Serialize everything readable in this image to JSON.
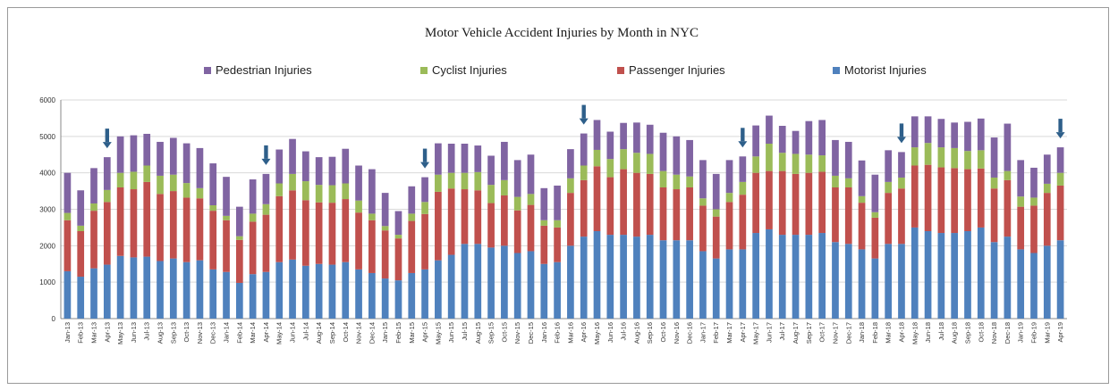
{
  "chart_data": {
    "type": "bar",
    "stacked": true,
    "title": "Motor Vehicle Accident Injuries by Month in NYC",
    "xlabel": "",
    "ylabel": "",
    "ylim": [
      0,
      6000
    ],
    "yticks": [
      0,
      1000,
      2000,
      3000,
      4000,
      5000,
      6000
    ],
    "grid": true,
    "legend_position": "top",
    "categories": [
      "Jan-13",
      "Feb-13",
      "Mar-13",
      "Apr-13",
      "May-13",
      "Jun-13",
      "Jul-13",
      "Aug-13",
      "Sep-13",
      "Oct-13",
      "Nov-13",
      "Dec-13",
      "Jan-14",
      "Feb-14",
      "Mar-14",
      "Apr-14",
      "May-14",
      "Jun-14",
      "Jul-14",
      "Aug-14",
      "Sep-14",
      "Oct-14",
      "Nov-14",
      "Dec-14",
      "Jan-15",
      "Feb-15",
      "Mar-15",
      "Apr-15",
      "May-15",
      "Jun-15",
      "Jul-15",
      "Aug-15",
      "Sep-15",
      "Oct-15",
      "Nov-15",
      "Dec-15",
      "Jan-16",
      "Feb-16",
      "Mar-16",
      "Apr-16",
      "May-16",
      "Jun-16",
      "Jul-16",
      "Aug-16",
      "Sep-16",
      "Oct-16",
      "Nov-16",
      "Dec-16",
      "Jan-17",
      "Feb-17",
      "Mar-17",
      "Apr-17",
      "May-17",
      "Jun-17",
      "Jul-17",
      "Aug-17",
      "Sep-17",
      "Oct-17",
      "Nov-17",
      "Dec-17",
      "Jan-18",
      "Feb-18",
      "Mar-18",
      "Apr-18",
      "May-18",
      "Jun-18",
      "Jul-18",
      "Aug-18",
      "Sep-18",
      "Oct-18",
      "Nov-18",
      "Dec-18",
      "Jan-19",
      "Feb-19",
      "Mar-19",
      "Apr-19"
    ],
    "series": [
      {
        "name": "Motorist Injuries",
        "color": "#4f81bd",
        "values": [
          1300,
          1150,
          1380,
          1480,
          1720,
          1680,
          1700,
          1580,
          1650,
          1550,
          1600,
          1350,
          1280,
          980,
          1220,
          1280,
          1550,
          1620,
          1450,
          1500,
          1480,
          1550,
          1350,
          1250,
          1100,
          1050,
          1250,
          1350,
          1600,
          1750,
          2050,
          2050,
          1950,
          2000,
          1800,
          1850,
          1500,
          1550,
          2000,
          2250,
          2400,
          2300,
          2300,
          2250,
          2300,
          2150,
          2150,
          2150,
          1850,
          1650,
          1900,
          1900,
          2350,
          2450,
          2300,
          2300,
          2300,
          2350,
          2100,
          2050,
          1900,
          1650,
          2050,
          2050,
          2500,
          2400,
          2350,
          2350,
          2400,
          2500,
          2100,
          2250,
          1900,
          1800,
          2000,
          2150
        ]
      },
      {
        "name": "Passenger Injuries",
        "color": "#c0504d",
        "values": [
          1400,
          1250,
          1580,
          1720,
          1880,
          1870,
          2050,
          1840,
          1850,
          1770,
          1700,
          1610,
          1420,
          1180,
          1440,
          1570,
          1810,
          1900,
          1800,
          1690,
          1700,
          1730,
          1560,
          1450,
          1320,
          1150,
          1430,
          1520,
          1880,
          1820,
          1500,
          1470,
          1220,
          1380,
          1170,
          1270,
          1050,
          950,
          1450,
          1550,
          1780,
          1580,
          1800,
          1750,
          1670,
          1450,
          1400,
          1450,
          1250,
          1150,
          1300,
          1500,
          1650,
          1600,
          1750,
          1670,
          1700,
          1680,
          1500,
          1550,
          1280,
          1120,
          1400,
          1520,
          1700,
          1820,
          1800,
          1780,
          1700,
          1620,
          1470,
          1550,
          1170,
          1300,
          1450,
          1500
        ]
      },
      {
        "name": "Cyclist Injuries",
        "color": "#9bbb59",
        "values": [
          200,
          150,
          200,
          330,
          400,
          480,
          450,
          500,
          450,
          400,
          280,
          150,
          120,
          100,
          220,
          290,
          350,
          450,
          520,
          480,
          480,
          430,
          330,
          180,
          120,
          100,
          200,
          330,
          470,
          430,
          450,
          500,
          500,
          420,
          370,
          300,
          150,
          200,
          400,
          400,
          450,
          500,
          550,
          550,
          550,
          450,
          400,
          300,
          200,
          200,
          250,
          350,
          450,
          750,
          500,
          550,
          500,
          450,
          320,
          250,
          180,
          150,
          300,
          300,
          500,
          600,
          550,
          550,
          500,
          500,
          300,
          250,
          280,
          220,
          250,
          350
        ]
      },
      {
        "name": "Pedestrian Injuries",
        "color": "#8064a2",
        "values": [
          1100,
          970,
          970,
          900,
          1000,
          1000,
          870,
          930,
          1010,
          1090,
          1100,
          1150,
          1070,
          810,
          940,
          830,
          930,
          960,
          820,
          760,
          780,
          950,
          960,
          1220,
          910,
          650,
          750,
          680,
          860,
          800,
          800,
          730,
          800,
          1050,
          1010,
          1080,
          880,
          950,
          800,
          880,
          820,
          750,
          720,
          830,
          800,
          1050,
          1050,
          1000,
          1050,
          970,
          900,
          700,
          850,
          770,
          740,
          630,
          920,
          970,
          980,
          1000,
          980,
          1030,
          870,
          700,
          850,
          730,
          780,
          700,
          800,
          870,
          1100,
          1300,
          1000,
          820,
          800,
          700
        ]
      }
    ],
    "annotations": {
      "type": "down-arrow",
      "color": "#2e5f8a",
      "categories": [
        "Apr-13",
        "Apr-14",
        "Apr-15",
        "Apr-16",
        "Apr-17",
        "Apr-18",
        "Apr-19"
      ]
    }
  }
}
